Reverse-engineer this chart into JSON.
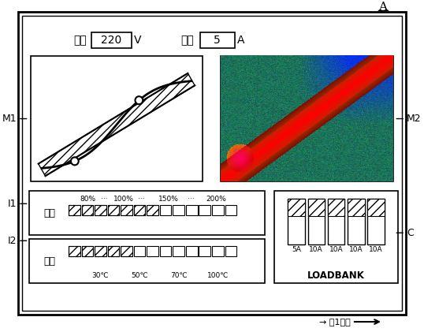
{
  "title_A": "A",
  "arrow_label": "→ 제1방향",
  "label_M1": "M1",
  "label_M2": "M2",
  "label_I1": "I1",
  "label_I2": "I2",
  "label_C": "C",
  "voltage_label": "전압",
  "voltage_value": "220",
  "voltage_unit": "V",
  "current_label": "전류",
  "current_value": "5",
  "current_unit": "A",
  "indicator_I1_label": "전류",
  "indicator_I1_percent_labels": [
    "80%",
    "100%",
    "150%",
    "200%"
  ],
  "indicator_I2_label": "온도",
  "indicator_I2_temp_labels": [
    "30℃",
    "50℃",
    "70℃",
    "100℃"
  ],
  "loadbank_label": "LOADBANK",
  "loadbank_fuses": [
    "5A",
    "10A",
    "10A",
    "10A",
    "10A"
  ],
  "bg_color": "#ffffff",
  "num_indicators_I1": 13,
  "num_indicators_I2": 13,
  "num_filled_I1": 7,
  "num_filled_I2": 5
}
